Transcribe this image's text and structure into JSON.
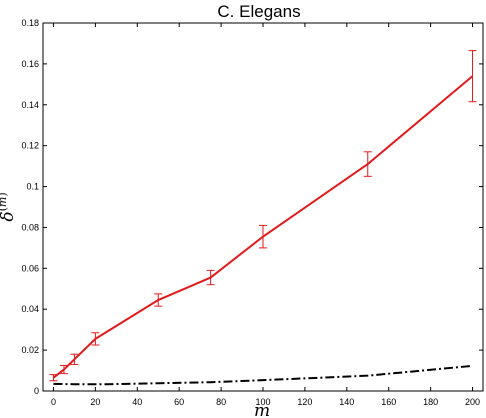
{
  "chart_data": {
    "type": "line",
    "title": "C. Elegans",
    "xlabel": "m",
    "ylabel": {
      "base": "δ",
      "superscript_open": "(",
      "superscript_var": "m",
      "superscript_close": ")"
    },
    "xlim": [
      -5,
      205
    ],
    "ylim": [
      0,
      0.18
    ],
    "xticks": [
      "0",
      "20",
      "40",
      "60",
      "80",
      "100",
      "120",
      "140",
      "160",
      "180",
      "200"
    ],
    "yticks": [
      "0",
      "0.02",
      "0.04",
      "0.06",
      "0.08",
      "0.1",
      "0.12",
      "0.14",
      "0.16",
      "0.18"
    ],
    "grid": false,
    "series": [
      {
        "color": "#e31a1c",
        "style": "solid",
        "x": [
          0,
          5,
          10,
          20,
          50,
          75,
          100,
          150,
          200
        ],
        "y": [
          0.0065,
          0.0105,
          0.0155,
          0.0255,
          0.0445,
          0.0555,
          0.0755,
          0.111,
          0.154
        ],
        "yerr": [
          0.0015,
          0.002,
          0.0025,
          0.003,
          0.003,
          0.0035,
          0.0055,
          0.006,
          0.0125
        ]
      },
      {
        "color": "#000000",
        "style": "dashdot",
        "x": [
          0,
          10,
          25,
          50,
          75,
          100,
          150,
          200
        ],
        "y": [
          0.0035,
          0.0033,
          0.0033,
          0.0038,
          0.0043,
          0.0053,
          0.0075,
          0.0123
        ]
      }
    ]
  }
}
